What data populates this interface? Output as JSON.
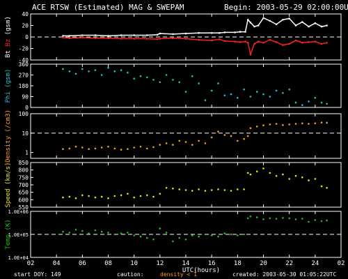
{
  "header": {
    "title": "ACE RTSW (Estimated) MAG & SWEPAM",
    "begin": "Begin: 2003-05-29 02:00:00UTC"
  },
  "footer": {
    "start_doy": "start DOY: 149",
    "caution": "caution:",
    "density_note": "density < 1",
    "created": "created: 2003-05-30 01:05:22UTC"
  },
  "colors": {
    "bt": "#ffffff",
    "bz": "#ff2020",
    "phi": "#20c0d0",
    "density": "#ff9c20",
    "speed": "#e8e020",
    "temp": "#20c020",
    "axis": "#ffffff",
    "dash": "#ffffff"
  },
  "chart_data": [
    {
      "type": "line",
      "ylabel_parts": [
        "Bt",
        "Bz",
        "(gsm)"
      ],
      "yticks": [
        "40",
        "20",
        "0",
        "-20",
        "-40"
      ],
      "ylim": [
        -40,
        40
      ],
      "reference_line": 0,
      "series": [
        {
          "name": "Bt",
          "color_key": "bt",
          "x": [
            4.5,
            5,
            6,
            7,
            8,
            9,
            10,
            11,
            11.8,
            12,
            13,
            14,
            15,
            16,
            16.6,
            17,
            17.8,
            18.2,
            18.6,
            18.8,
            19,
            19.3,
            19.6,
            20,
            20.5,
            21,
            21.5,
            22,
            22.5,
            23,
            23.5,
            24,
            24.5,
            24.9
          ],
          "y": [
            2,
            2,
            3,
            3,
            2,
            3,
            3,
            3,
            4,
            6,
            5,
            6,
            7,
            7,
            7,
            8,
            8,
            9,
            9,
            30,
            25,
            18,
            20,
            33,
            28,
            22,
            30,
            32,
            20,
            26,
            18,
            24,
            18,
            20
          ]
        },
        {
          "name": "Bz",
          "color_key": "bz",
          "x": [
            4.5,
            5,
            6,
            7,
            8,
            9,
            10,
            11,
            11.8,
            12,
            13,
            14,
            15,
            16,
            16.6,
            17,
            17.8,
            18.2,
            18.6,
            18.8,
            19,
            19.3,
            19.6,
            20,
            20.5,
            21,
            21.5,
            22,
            22.5,
            23,
            23.5,
            24,
            24.5,
            24.9
          ],
          "y": [
            -1,
            -2,
            -1,
            -2,
            -2,
            -3,
            -3,
            -3,
            -4,
            -3,
            -2,
            -3,
            -5,
            -6,
            -4,
            -7,
            -8,
            -9,
            -8,
            -10,
            -30,
            -12,
            -8,
            -10,
            -5,
            -9,
            -14,
            -12,
            -6,
            -10,
            -9,
            -8,
            -12,
            -10
          ]
        }
      ]
    },
    {
      "type": "scatter",
      "ylabel": "Phi (gsm)",
      "yticks": [
        "360",
        "270",
        "180",
        "90",
        "0"
      ],
      "ylim": [
        0,
        360
      ],
      "series": [
        {
          "name": "Phi",
          "color_key": "phi",
          "x": [
            4.5,
            5,
            5.5,
            6,
            6.5,
            7,
            7.5,
            8,
            8.5,
            9,
            9.5,
            10,
            10.5,
            11,
            11.5,
            12,
            12.5,
            13,
            13.5,
            14,
            14.5,
            15,
            15.5,
            16,
            16.5,
            17,
            17.5,
            18,
            18.5,
            19,
            19.5,
            20,
            20.5,
            21,
            21.5,
            22,
            22.5,
            23,
            23.5,
            24,
            24.5,
            24.9
          ],
          "y": [
            320,
            300,
            280,
            320,
            300,
            310,
            270,
            330,
            300,
            310,
            290,
            240,
            260,
            250,
            230,
            210,
            270,
            230,
            210,
            130,
            260,
            200,
            60,
            140,
            200,
            100,
            110,
            80,
            150,
            90,
            130,
            110,
            90,
            140,
            120,
            150,
            40,
            20,
            50,
            80,
            40,
            30
          ]
        }
      ]
    },
    {
      "type": "scatter",
      "ylabel": "Density (/cm3)",
      "yscale": "log",
      "yticks": [
        "100",
        "10",
        "1"
      ],
      "ylim": [
        0.5,
        100
      ],
      "reference_line": 10,
      "series": [
        {
          "name": "Density",
          "color_key": "density",
          "x": [
            4.5,
            5,
            5.5,
            6,
            6.5,
            7,
            7.5,
            8,
            8.5,
            9,
            9.5,
            10,
            10.5,
            11,
            11.5,
            12,
            12.5,
            13,
            13.5,
            14,
            14.5,
            15,
            15.5,
            16,
            16.5,
            17,
            17.5,
            18,
            18.5,
            18.8,
            19,
            19.5,
            20,
            20.5,
            21,
            21.5,
            22,
            22.5,
            23,
            23.5,
            24,
            24.5,
            24.9
          ],
          "y": [
            1.5,
            1.6,
            2,
            1.8,
            1.5,
            1.6,
            1.8,
            2,
            1.6,
            1.4,
            1.5,
            1.8,
            2,
            1.6,
            1.9,
            2.5,
            3,
            2.5,
            4,
            3.5,
            2.5,
            4,
            3,
            6,
            12,
            8,
            7,
            4,
            5,
            7,
            18,
            22,
            25,
            28,
            30,
            26,
            28,
            30,
            32,
            30,
            32,
            35,
            34
          ]
        }
      ]
    },
    {
      "type": "scatter",
      "ylabel": "Speed (km/s)",
      "yticks": [
        "850",
        "800",
        "750",
        "700",
        "650",
        "600",
        "550"
      ],
      "ylim": [
        550,
        850
      ],
      "series": [
        {
          "name": "Speed",
          "color_key": "speed",
          "x": [
            4.5,
            5,
            5.5,
            6,
            6.5,
            7,
            7.5,
            8,
            8.5,
            9,
            9.5,
            10,
            10.5,
            11,
            11.5,
            12,
            12.5,
            13,
            13.5,
            14,
            14.5,
            15,
            15.5,
            16,
            16.5,
            17,
            17.5,
            18,
            18.5,
            18.8,
            19,
            19.5,
            20,
            20.5,
            21,
            21.5,
            22,
            22.5,
            23,
            23.5,
            24,
            24.5,
            24.9
          ],
          "y": [
            615,
            620,
            610,
            630,
            625,
            615,
            620,
            610,
            625,
            630,
            640,
            615,
            625,
            630,
            620,
            640,
            680,
            675,
            670,
            665,
            660,
            670,
            660,
            665,
            670,
            665,
            660,
            670,
            670,
            780,
            770,
            790,
            810,
            780,
            760,
            770,
            740,
            760,
            750,
            730,
            740,
            690,
            680
          ]
        }
      ]
    },
    {
      "type": "scatter",
      "ylabel": "Temp (K)",
      "yscale": "log",
      "yticks": [
        "1.0E+06",
        "1.0E+05",
        "1.0E+04"
      ],
      "ylim": [
        10000,
        1000000
      ],
      "reference_line": 100000,
      "series": [
        {
          "name": "Temp",
          "color_key": "temp",
          "x": [
            4.5,
            5,
            5.5,
            6,
            6.5,
            7,
            7.5,
            8,
            8.5,
            9,
            9.5,
            10,
            10.5,
            11,
            11.5,
            12,
            12.5,
            13,
            13.5,
            14,
            14.5,
            15,
            15.5,
            16,
            16.5,
            17,
            17.5,
            18,
            18.5,
            18.8,
            19,
            19.5,
            20,
            20.5,
            21,
            21.5,
            22,
            22.5,
            23,
            23.5,
            24,
            24.5,
            24.9
          ],
          "y": [
            130000,
            120000,
            160000,
            140000,
            110000,
            150000,
            130000,
            120000,
            100000,
            110000,
            120000,
            90000,
            80000,
            70000,
            60000,
            180000,
            120000,
            50000,
            70000,
            60000,
            90000,
            80000,
            100000,
            90000,
            80000,
            110000,
            100000,
            90000,
            100000,
            500000,
            600000,
            550000,
            450000,
            500000,
            480000,
            520000,
            500000,
            450000,
            480000,
            350000,
            420000,
            380000,
            400000
          ]
        }
      ]
    }
  ],
  "xaxis": {
    "ticks": [
      "02",
      "04",
      "06",
      "08",
      "10",
      "12",
      "14",
      "16",
      "18",
      "20",
      "22",
      "24",
      "02"
    ],
    "tick_hours": [
      2,
      4,
      6,
      8,
      10,
      12,
      14,
      16,
      18,
      20,
      22,
      24,
      26
    ],
    "xlim": [
      2,
      26
    ],
    "label": "UTC(hours)"
  }
}
